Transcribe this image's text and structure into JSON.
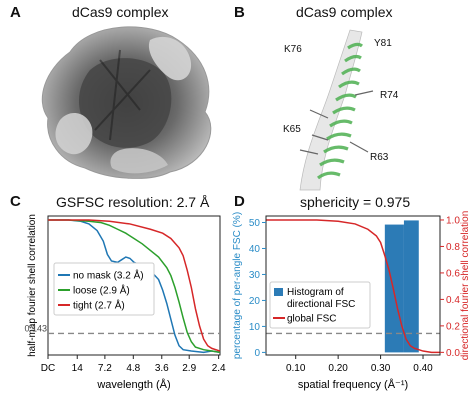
{
  "panels": {
    "A": {
      "letter": "A",
      "title": "dCas9 complex"
    },
    "B": {
      "letter": "B",
      "title": "dCas9 complex",
      "residue_labels": [
        "K76",
        "Y81",
        "R74",
        "K65",
        "R63"
      ]
    },
    "C": {
      "letter": "C",
      "title": "GSFSC resolution: 2.7 Å"
    },
    "D": {
      "letter": "D",
      "title": "sphericity = 0.975"
    }
  },
  "chart_data": [
    {
      "type": "line",
      "panel": "C",
      "title": "GSFSC resolution: 2.7 Å",
      "xlabel": "wavelength (Å)",
      "ylabel": "half-map fourier shell correlation",
      "x_tick_labels": [
        "DC",
        "14",
        "7.2",
        "4.8",
        "3.6",
        "2.9",
        "2.4"
      ],
      "x_tick_freq": [
        0.0,
        0.0714,
        0.1389,
        0.2083,
        0.2778,
        0.3448,
        0.4167
      ],
      "xlim": [
        0,
        0.42
      ],
      "ylim": [
        -0.02,
        1.03
      ],
      "threshold": {
        "value": 0.143,
        "label": "0.143",
        "color": "#888888"
      },
      "legend_position": "center-left",
      "series": [
        {
          "name": "no mask (3.2 Å)",
          "color": "#1f77b4",
          "x": [
            0,
            0.02,
            0.05,
            0.08,
            0.1,
            0.12,
            0.135,
            0.145,
            0.155,
            0.17,
            0.18,
            0.19,
            0.2,
            0.21,
            0.225,
            0.24,
            0.255,
            0.27,
            0.28,
            0.29,
            0.3,
            0.31,
            0.32,
            0.33,
            0.35,
            0.38,
            0.4,
            0.42
          ],
          "y": [
            1,
            1,
            1,
            0.99,
            0.97,
            0.92,
            0.84,
            0.74,
            0.69,
            0.68,
            0.7,
            0.72,
            0.71,
            0.68,
            0.66,
            0.64,
            0.6,
            0.55,
            0.47,
            0.37,
            0.25,
            0.13,
            0.05,
            0.02,
            0.01,
            0.0,
            0.01,
            0.0
          ]
        },
        {
          "name": "loose (2.9 Å)",
          "color": "#2ca02c",
          "x": [
            0,
            0.05,
            0.1,
            0.13,
            0.15,
            0.17,
            0.19,
            0.21,
            0.23,
            0.25,
            0.27,
            0.29,
            0.3,
            0.31,
            0.32,
            0.33,
            0.34,
            0.35,
            0.36,
            0.38,
            0.4,
            0.42
          ],
          "y": [
            1,
            1,
            0.99,
            0.98,
            0.96,
            0.93,
            0.9,
            0.86,
            0.82,
            0.77,
            0.72,
            0.64,
            0.58,
            0.49,
            0.38,
            0.26,
            0.15,
            0.08,
            0.04,
            0.02,
            0.01,
            0.0
          ]
        },
        {
          "name": "tight (2.7 Å)",
          "color": "#d62728",
          "x": [
            0,
            0.05,
            0.1,
            0.15,
            0.2,
            0.25,
            0.28,
            0.3,
            0.32,
            0.33,
            0.34,
            0.35,
            0.36,
            0.37,
            0.38,
            0.39,
            0.4,
            0.42
          ],
          "y": [
            1,
            1,
            1,
            0.99,
            0.97,
            0.93,
            0.9,
            0.86,
            0.79,
            0.73,
            0.62,
            0.49,
            0.33,
            0.2,
            0.1,
            0.05,
            0.03,
            0.01
          ]
        }
      ]
    },
    {
      "type": "bar",
      "panel": "D",
      "title": "sphericity = 0.975",
      "xlabel": "spatial frequency (Å⁻¹)",
      "ylabel_left": "percentage of per-angle FSC (%)",
      "ylabel_right": "directional fourier shell correlation",
      "x_tick_labels": [
        "0.10",
        "0.20",
        "0.30",
        "0.40"
      ],
      "x_tick_values": [
        0.1,
        0.2,
        0.3,
        0.4
      ],
      "xlim": [
        0.03,
        0.44
      ],
      "ylim_left": [
        -1,
        52.5
      ],
      "y_left_ticks": [
        "0",
        "10",
        "20",
        "30",
        "40",
        "50"
      ],
      "ylim_right": [
        -0.02,
        1.03
      ],
      "y_right_ticks": [
        "0.0",
        "0.2",
        "0.4",
        "0.6",
        "0.8",
        "1.0"
      ],
      "threshold": {
        "value": 0.143,
        "color": "#888888"
      },
      "legend_position": "center-left",
      "bars": {
        "name": "Histogram of directional FSC",
        "color": "#2c7bb6",
        "bins": [
          [
            0.31,
            0.355
          ],
          [
            0.355,
            0.39
          ]
        ],
        "values": [
          49.2,
          50.8
        ]
      },
      "line": {
        "name": "global FSC",
        "color": "#d62728",
        "x": [
          0.03,
          0.1,
          0.15,
          0.2,
          0.24,
          0.27,
          0.29,
          0.3,
          0.31,
          0.32,
          0.33,
          0.34,
          0.35,
          0.36,
          0.37,
          0.38,
          0.39,
          0.4,
          0.42,
          0.44
        ],
        "y": [
          1,
          1,
          1,
          0.99,
          0.97,
          0.93,
          0.88,
          0.83,
          0.73,
          0.62,
          0.48,
          0.33,
          0.2,
          0.1,
          0.05,
          0.03,
          0.02,
          0.01,
          0.0,
          0.0
        ]
      }
    }
  ]
}
